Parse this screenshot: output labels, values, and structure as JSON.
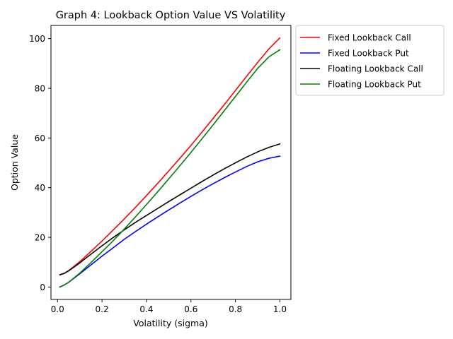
{
  "chart_data": {
    "type": "line",
    "title": "Graph 4: Lookback Option Value VS Volatility",
    "xlabel": "Volatility (sigma)",
    "ylabel": "Option Value",
    "xlim": [
      -0.0295,
      1.0495
    ],
    "ylim": [
      -5.0,
      105.3
    ],
    "xticks": [
      0.0,
      0.2,
      0.4,
      0.6,
      0.8,
      1.0
    ],
    "xtick_labels": [
      "0.0",
      "0.2",
      "0.4",
      "0.6",
      "0.8",
      "1.0"
    ],
    "yticks": [
      0,
      20,
      40,
      60,
      80,
      100
    ],
    "ytick_labels": [
      "0",
      "20",
      "40",
      "60",
      "80",
      "100"
    ],
    "grid": false,
    "legend_position": "outside upper-right",
    "x": [
      0.01,
      0.03,
      0.05,
      0.1,
      0.15,
      0.2,
      0.25,
      0.3,
      0.35,
      0.4,
      0.45,
      0.5,
      0.55,
      0.6,
      0.65,
      0.7,
      0.75,
      0.8,
      0.85,
      0.9,
      0.95,
      1.0
    ],
    "series": [
      {
        "name": "Fixed Lookback Call",
        "color": "#ff0000",
        "values": [
          4.9,
          5.5,
          6.6,
          10.2,
          14.3,
          18.5,
          22.9,
          27.4,
          32.0,
          36.8,
          41.7,
          46.7,
          51.8,
          57.0,
          62.4,
          67.9,
          73.4,
          79.1,
          84.8,
          90.4,
          95.8,
          100.3
        ]
      },
      {
        "name": "Fixed Lookback Put",
        "color": "#0000ff",
        "values": [
          0.0,
          0.8,
          1.9,
          5.3,
          8.9,
          12.4,
          15.8,
          19.2,
          22.3,
          25.3,
          28.2,
          31.0,
          33.8,
          36.5,
          39.1,
          41.6,
          44.0,
          46.3,
          48.5,
          50.4,
          51.8,
          52.7
        ]
      },
      {
        "name": "Floating Lookback Call",
        "color": "#000000",
        "values": [
          4.9,
          5.5,
          6.5,
          9.7,
          13.2,
          16.6,
          19.9,
          23.0,
          26.0,
          28.8,
          31.6,
          34.4,
          37.1,
          39.8,
          42.5,
          45.1,
          47.6,
          50.0,
          52.3,
          54.4,
          56.2,
          57.6
        ]
      },
      {
        "name": "Floating Lookback Put",
        "color": "#008000",
        "values": [
          0.0,
          0.8,
          1.9,
          5.6,
          9.8,
          14.2,
          18.6,
          23.3,
          28.2,
          33.2,
          38.3,
          43.5,
          48.8,
          54.2,
          59.7,
          65.3,
          71.0,
          76.7,
          82.4,
          88.0,
          92.6,
          95.5
        ]
      }
    ]
  }
}
